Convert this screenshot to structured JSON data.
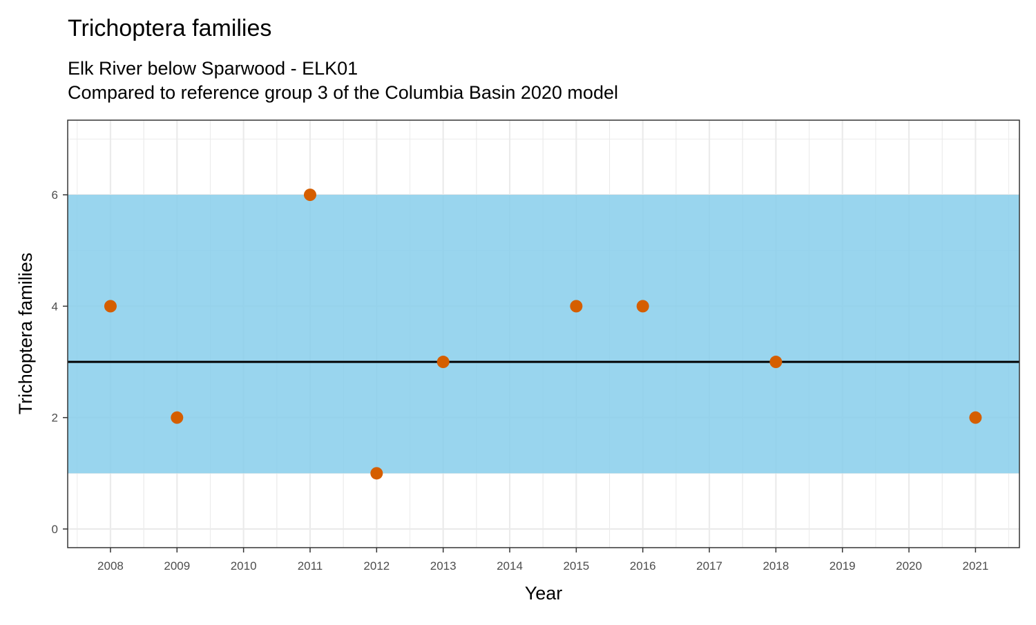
{
  "chart_data": {
    "type": "scatter",
    "title": "Trichoptera families",
    "subtitle_line1": "Elk River below Sparwood - ELK01",
    "subtitle_line2": "Compared to reference group 3 of the Columbia Basin 2020 model",
    "xlabel": "Year",
    "ylabel": "Trichoptera families",
    "x_ticks": [
      2008,
      2009,
      2010,
      2011,
      2012,
      2013,
      2014,
      2015,
      2016,
      2017,
      2018,
      2019,
      2020,
      2021
    ],
    "y_ticks": [
      0,
      2,
      4,
      6
    ],
    "xlim": [
      2007.357,
      2021.66
    ],
    "ylim": [
      -0.335,
      7.34
    ],
    "grid": true,
    "reference_band": {
      "low": 1,
      "high": 6,
      "color": "#87CEEB"
    },
    "reference_line": {
      "value": 3,
      "color": "#000000"
    },
    "points": {
      "x": [
        2008,
        2009,
        2011,
        2012,
        2013,
        2015,
        2016,
        2018,
        2021
      ],
      "y": [
        4,
        2,
        6,
        1,
        3,
        4,
        4,
        3,
        2
      ],
      "color": "#D55E00"
    }
  }
}
